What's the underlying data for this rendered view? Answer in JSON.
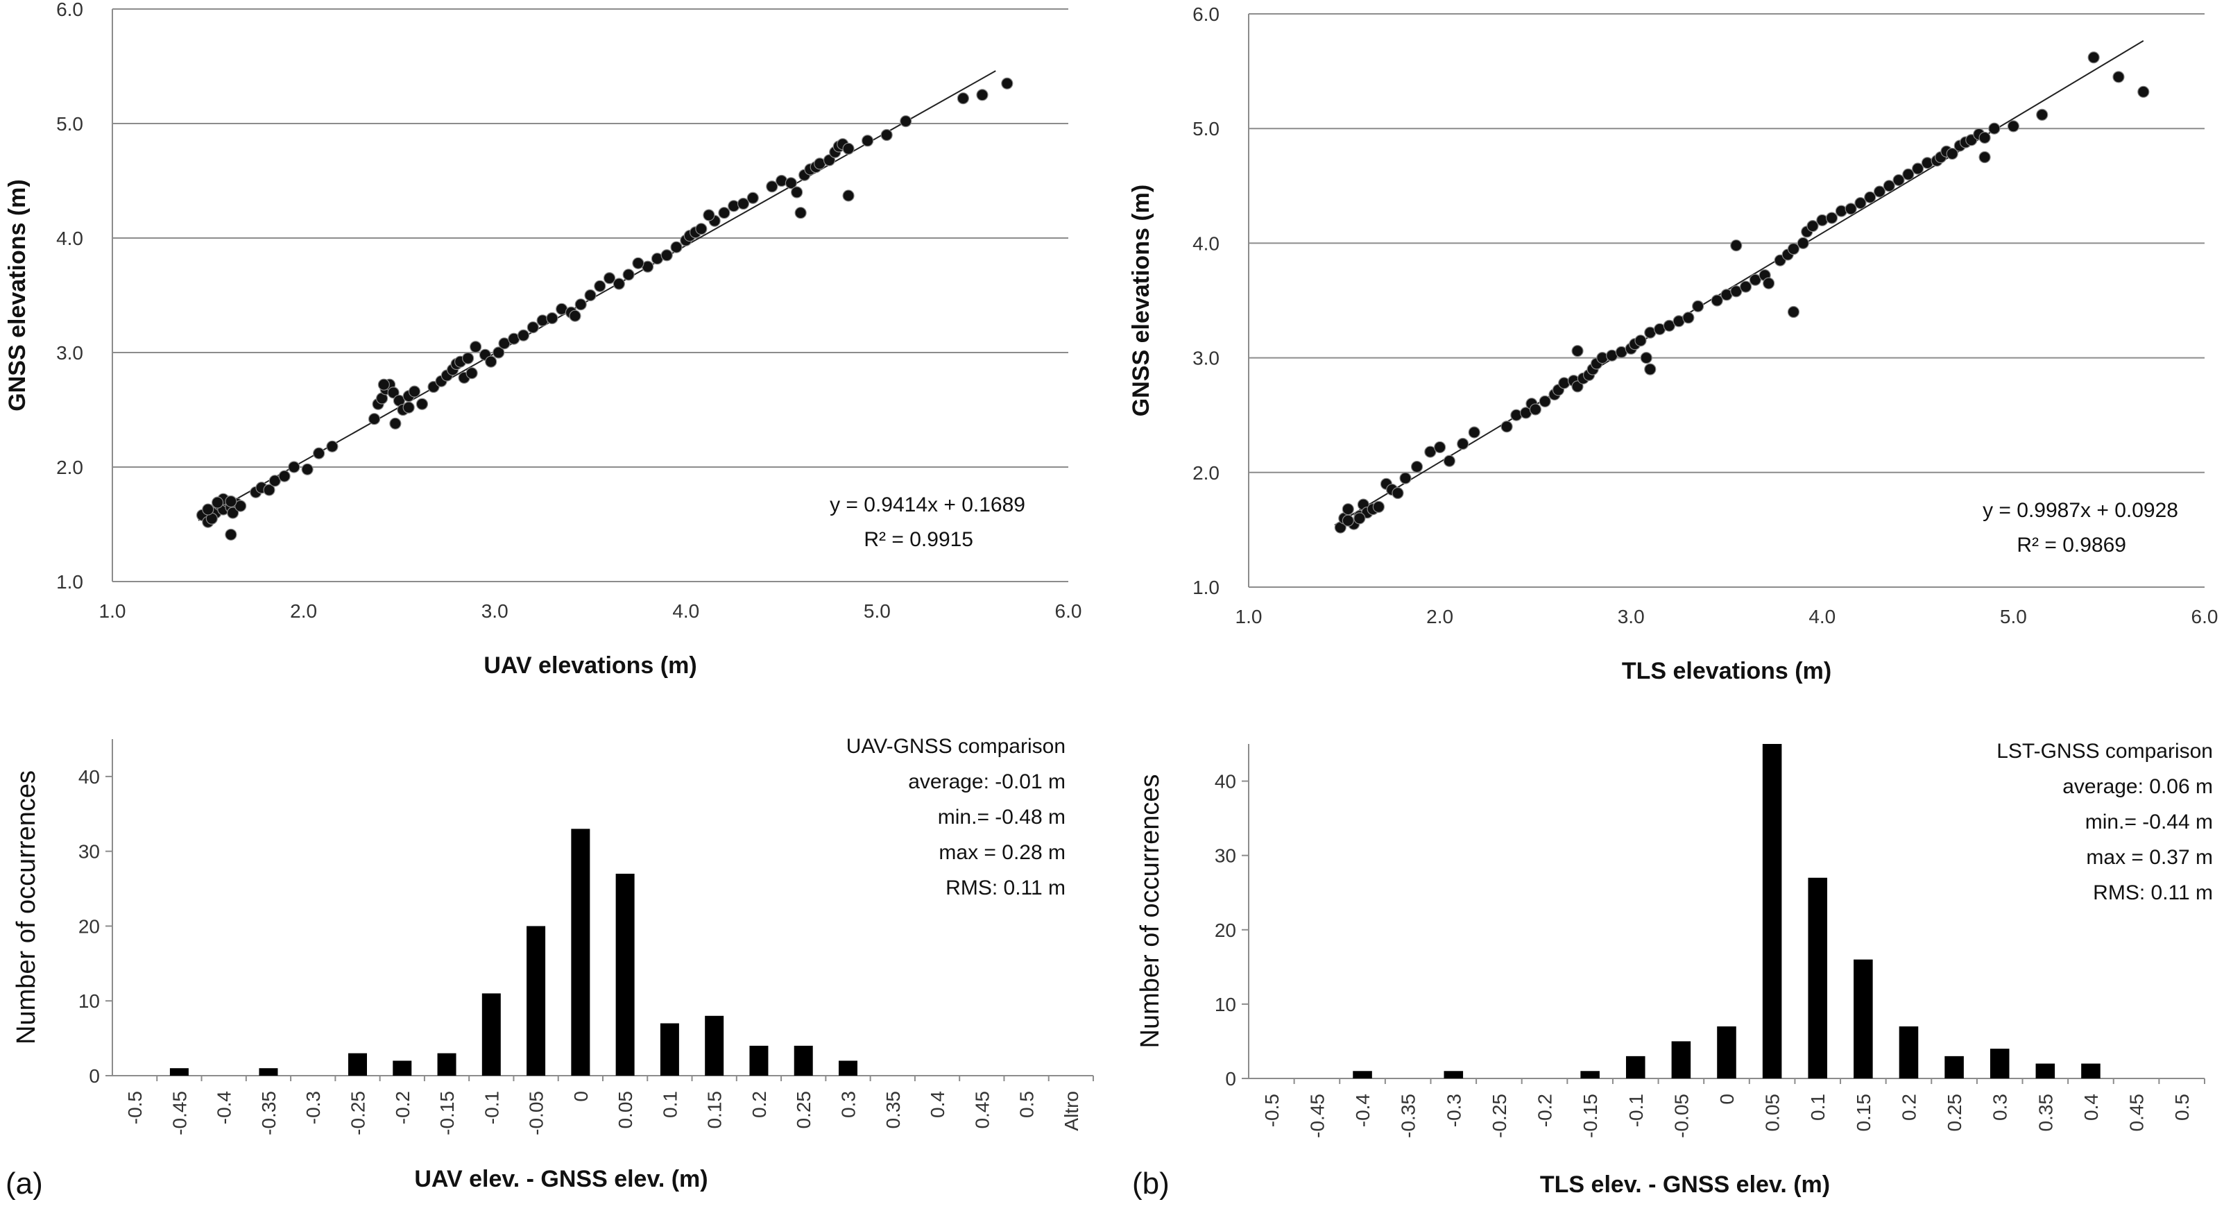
{
  "panels": {
    "a": "(a)",
    "b": "(b)"
  },
  "chart_data": [
    {
      "type": "scatter",
      "panel": "a",
      "xlabel": "UAV elevations (m)",
      "ylabel": "GNSS elevations (m)",
      "xlim": [
        1.0,
        6.0
      ],
      "ylim": [
        1.0,
        6.0
      ],
      "xticks": [
        "1.0",
        "2.0",
        "3.0",
        "4.0",
        "5.0",
        "6.0"
      ],
      "yticks": [
        "1.0",
        "2.0",
        "3.0",
        "4.0",
        "5.0",
        "6.0"
      ],
      "grid": "horizontal",
      "trendline": {
        "slope": 0.9414,
        "intercept": 0.1689,
        "xrange": [
          1.45,
          5.62
        ]
      },
      "equation": "y = 0.9414x  + 0.1689",
      "r2": "R² = 0.9915",
      "x": [
        1.47,
        1.5,
        1.52,
        1.54,
        1.56,
        1.58,
        1.6,
        1.62,
        1.65,
        1.52,
        1.58,
        1.63,
        1.67,
        1.5,
        1.55,
        1.62,
        1.75,
        1.78,
        1.82,
        1.85,
        1.9,
        1.95,
        2.02,
        2.08,
        2.15,
        2.37,
        2.39,
        2.41,
        2.43,
        2.45,
        2.47,
        2.5,
        2.52,
        2.55,
        2.58,
        2.62,
        2.68,
        2.72,
        2.75,
        2.78,
        2.8,
        2.82,
        2.84,
        2.86,
        2.9,
        2.95,
        2.98,
        3.02,
        3.05,
        3.1,
        3.15,
        3.2,
        3.25,
        3.3,
        3.35,
        3.4,
        3.45,
        3.5,
        3.55,
        3.6,
        3.65,
        3.7,
        3.8,
        3.85,
        3.9,
        3.95,
        4.0,
        4.02,
        4.05,
        4.08,
        4.15,
        4.2,
        4.25,
        4.3,
        4.35,
        4.45,
        4.5,
        4.55,
        4.58,
        4.6,
        4.62,
        4.65,
        4.68,
        4.7,
        4.75,
        4.78,
        4.8,
        4.82,
        4.85,
        4.95,
        5.05,
        5.15,
        5.45,
        5.55,
        5.68,
        2.42,
        2.48,
        4.85,
        1.62,
        2.55,
        3.75,
        4.12,
        2.88,
        3.42
      ],
      "y": [
        1.58,
        1.52,
        1.62,
        1.6,
        1.67,
        1.63,
        1.7,
        1.65,
        1.68,
        1.55,
        1.72,
        1.6,
        1.66,
        1.63,
        1.69,
        1.41,
        1.78,
        1.82,
        1.8,
        1.88,
        1.92,
        2.0,
        1.98,
        2.12,
        2.18,
        2.42,
        2.55,
        2.6,
        2.68,
        2.72,
        2.65,
        2.58,
        2.5,
        2.62,
        2.66,
        2.55,
        2.7,
        2.75,
        2.8,
        2.85,
        2.9,
        2.92,
        2.78,
        2.95,
        3.05,
        2.98,
        2.92,
        3.0,
        3.08,
        3.12,
        3.15,
        3.22,
        3.28,
        3.3,
        3.38,
        3.35,
        3.42,
        3.5,
        3.58,
        3.65,
        3.6,
        3.68,
        3.75,
        3.82,
        3.85,
        3.92,
        3.98,
        4.02,
        4.05,
        4.08,
        4.15,
        4.22,
        4.28,
        4.3,
        4.35,
        4.45,
        4.5,
        4.48,
        4.4,
        4.22,
        4.55,
        4.6,
        4.62,
        4.65,
        4.68,
        4.75,
        4.8,
        4.82,
        4.78,
        4.85,
        4.9,
        5.02,
        5.22,
        5.25,
        5.35,
        2.72,
        2.38,
        4.37,
        1.7,
        2.52,
        3.78,
        4.2,
        2.82,
        3.32
      ]
    },
    {
      "type": "scatter",
      "panel": "b",
      "xlabel": "TLS elevations (m)",
      "ylabel": "GNSS elevations (m)",
      "xlim": [
        1.0,
        6.0
      ],
      "ylim": [
        1.0,
        6.0
      ],
      "xticks": [
        "1.0",
        "2.0",
        "3.0",
        "4.0",
        "5.0",
        "6.0"
      ],
      "yticks": [
        "1.0",
        "2.0",
        "3.0",
        "4.0",
        "5.0",
        "6.0"
      ],
      "grid": "horizontal",
      "trendline": {
        "slope": 0.9987,
        "intercept": 0.0928,
        "xrange": [
          1.45,
          5.68
        ]
      },
      "equation": "y = 0.9987x  + 0.0928",
      "r2": "R² = 0.9869",
      "x": [
        1.48,
        1.5,
        1.52,
        1.55,
        1.58,
        1.6,
        1.62,
        1.65,
        1.68,
        1.52,
        1.58,
        1.72,
        1.75,
        1.78,
        1.82,
        1.88,
        1.95,
        2.0,
        2.05,
        2.12,
        2.18,
        2.35,
        2.4,
        2.45,
        2.48,
        2.5,
        2.55,
        2.6,
        2.62,
        2.65,
        2.7,
        2.72,
        2.75,
        2.78,
        2.8,
        2.82,
        2.85,
        2.9,
        2.95,
        3.0,
        3.02,
        3.05,
        3.08,
        3.1,
        3.15,
        3.2,
        3.25,
        3.3,
        3.35,
        3.45,
        3.5,
        3.55,
        3.6,
        3.65,
        3.7,
        3.72,
        3.78,
        3.82,
        3.85,
        3.9,
        3.92,
        3.95,
        4.0,
        4.05,
        4.1,
        4.15,
        4.2,
        4.25,
        4.3,
        4.35,
        4.4,
        4.45,
        4.5,
        4.55,
        4.6,
        4.62,
        4.65,
        4.68,
        4.72,
        4.75,
        4.78,
        4.82,
        4.85,
        4.9,
        5.0,
        5.15,
        5.42,
        5.55,
        5.68,
        3.85,
        3.55,
        2.72,
        3.1,
        4.85
      ],
      "y": [
        1.52,
        1.6,
        1.68,
        1.55,
        1.62,
        1.72,
        1.65,
        1.68,
        1.7,
        1.58,
        1.6,
        1.9,
        1.85,
        1.82,
        1.95,
        2.05,
        2.18,
        2.22,
        2.1,
        2.25,
        2.35,
        2.4,
        2.5,
        2.52,
        2.6,
        2.55,
        2.62,
        2.68,
        2.72,
        2.78,
        2.8,
        2.75,
        2.82,
        2.85,
        2.9,
        2.95,
        3.0,
        3.02,
        3.05,
        3.08,
        3.12,
        3.15,
        3.0,
        3.22,
        3.25,
        3.28,
        3.32,
        3.35,
        3.45,
        3.5,
        3.55,
        3.58,
        3.62,
        3.68,
        3.72,
        3.65,
        3.85,
        3.9,
        3.95,
        4.0,
        4.1,
        4.15,
        4.2,
        4.22,
        4.28,
        4.3,
        4.35,
        4.4,
        4.45,
        4.5,
        4.55,
        4.6,
        4.65,
        4.7,
        4.72,
        4.75,
        4.8,
        4.78,
        4.85,
        4.88,
        4.9,
        4.95,
        4.92,
        5.0,
        5.02,
        5.12,
        5.62,
        5.45,
        5.32,
        3.4,
        3.98,
        3.06,
        2.9,
        4.75
      ]
    },
    {
      "type": "bar",
      "panel": "a",
      "xlabel": "UAV elev. - GNSS elev. (m)",
      "ylabel": "Number of occurrences",
      "categories": [
        "-0.5",
        "-0.45",
        "-0.4",
        "-0.35",
        "-0.3",
        "-0.25",
        "-0.2",
        "-0.15",
        "-0.1",
        "-0.05",
        "0",
        "0.05",
        "0.1",
        "0.15",
        "0.2",
        "0.25",
        "0.3",
        "0.35",
        "0.4",
        "0.45",
        "0.5",
        "Altro"
      ],
      "values": [
        0,
        1,
        0,
        1,
        0,
        3,
        2,
        3,
        11,
        20,
        33,
        27,
        7,
        8,
        4,
        4,
        2,
        0,
        0,
        0,
        0,
        0
      ],
      "ylim": [
        0,
        45
      ],
      "yticks": [
        "0",
        "10",
        "20",
        "30",
        "40"
      ],
      "annotation": [
        "UAV-GNSS comparison",
        "average: -0.01 m",
        "min.= -0.48 m",
        "max = 0.28 m",
        "RMS: 0.11 m"
      ]
    },
    {
      "type": "bar",
      "panel": "b",
      "xlabel": "TLS elev. - GNSS elev. (m)",
      "ylabel": "Number of occurrences",
      "categories": [
        "-0.5",
        "-0.45",
        "-0.4",
        "-0.35",
        "-0.3",
        "-0.25",
        "-0.2",
        "-0.15",
        "-0.1",
        "-0.05",
        "0",
        "0.05",
        "0.1",
        "0.15",
        "0.2",
        "0.25",
        "0.3",
        "0.35",
        "0.4",
        "0.45",
        "0.5"
      ],
      "values": [
        0,
        0,
        1,
        0,
        1,
        0,
        0,
        1,
        3,
        5,
        7,
        45,
        27,
        16,
        7,
        3,
        4,
        2,
        2,
        0,
        0
      ],
      "ylim": [
        0,
        45
      ],
      "yticks": [
        "0",
        "10",
        "20",
        "30",
        "40"
      ],
      "annotation": [
        "LST-GNSS comparison",
        "average: 0.06 m",
        "min.= -0.44 m",
        "max = 0.37 m",
        "RMS: 0.11 m"
      ]
    }
  ]
}
